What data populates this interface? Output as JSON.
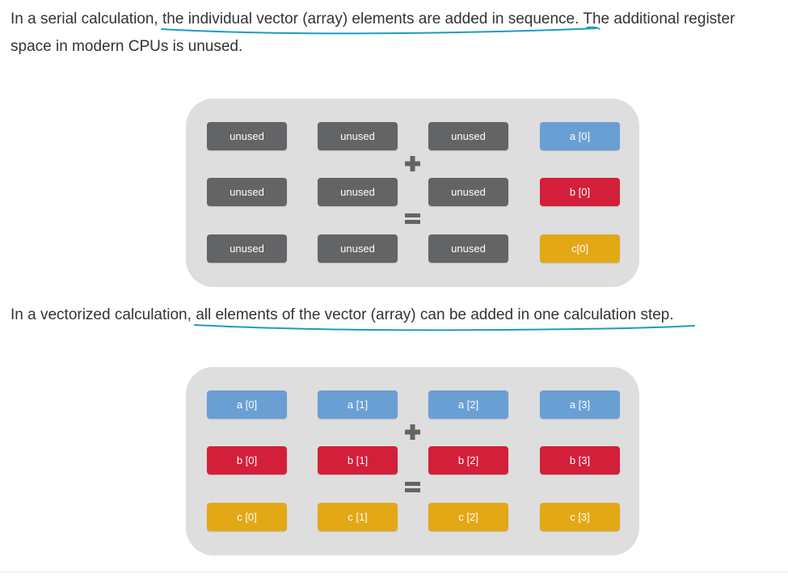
{
  "colors": {
    "unused": "#636466",
    "a": "#6a9fd4",
    "b": "#d31f3a",
    "c": "#e3a816",
    "panel": "#dedede",
    "underline": "#1b9cc0",
    "text": "#333333",
    "operator": "#636466"
  },
  "serial": {
    "text_before": "In a serial calculation, ",
    "text_underlined": "the individual vector (array) elements are added in sequence",
    "text_after_line1": ". The additional register",
    "text_line2": "space in modern CPUs is unused.",
    "operator_plus": "plus",
    "operator_equals": "equals",
    "rows": [
      [
        {
          "label": "unused",
          "kind": "unused"
        },
        {
          "label": "unused",
          "kind": "unused"
        },
        {
          "label": "unused",
          "kind": "unused"
        },
        {
          "label": "a [0]",
          "kind": "a"
        }
      ],
      [
        {
          "label": "unused",
          "kind": "unused"
        },
        {
          "label": "unused",
          "kind": "unused"
        },
        {
          "label": "unused",
          "kind": "unused"
        },
        {
          "label": "b [0]",
          "kind": "b"
        }
      ],
      [
        {
          "label": "unused",
          "kind": "unused"
        },
        {
          "label": "unused",
          "kind": "unused"
        },
        {
          "label": "unused",
          "kind": "unused"
        },
        {
          "label": "c[0]",
          "kind": "c"
        }
      ]
    ]
  },
  "vectorized": {
    "text_before": "In a vectorized calculation, ",
    "text_underlined": "all elements of the vector (array) can be added in one calculation step",
    "text_after": ".",
    "operator_plus": "plus",
    "operator_equals": "equals",
    "rows": [
      [
        {
          "label": "a [0]",
          "kind": "a"
        },
        {
          "label": "a [1]",
          "kind": "a"
        },
        {
          "label": "a [2]",
          "kind": "a"
        },
        {
          "label": "a [3]",
          "kind": "a"
        }
      ],
      [
        {
          "label": "b [0]",
          "kind": "b"
        },
        {
          "label": "b [1]",
          "kind": "b"
        },
        {
          "label": "b [2]",
          "kind": "b"
        },
        {
          "label": "b [3]",
          "kind": "b"
        }
      ],
      [
        {
          "label": "c [0]",
          "kind": "c"
        },
        {
          "label": "c [1]",
          "kind": "c"
        },
        {
          "label": "c [2]",
          "kind": "c"
        },
        {
          "label": "c [3]",
          "kind": "c"
        }
      ]
    ]
  }
}
